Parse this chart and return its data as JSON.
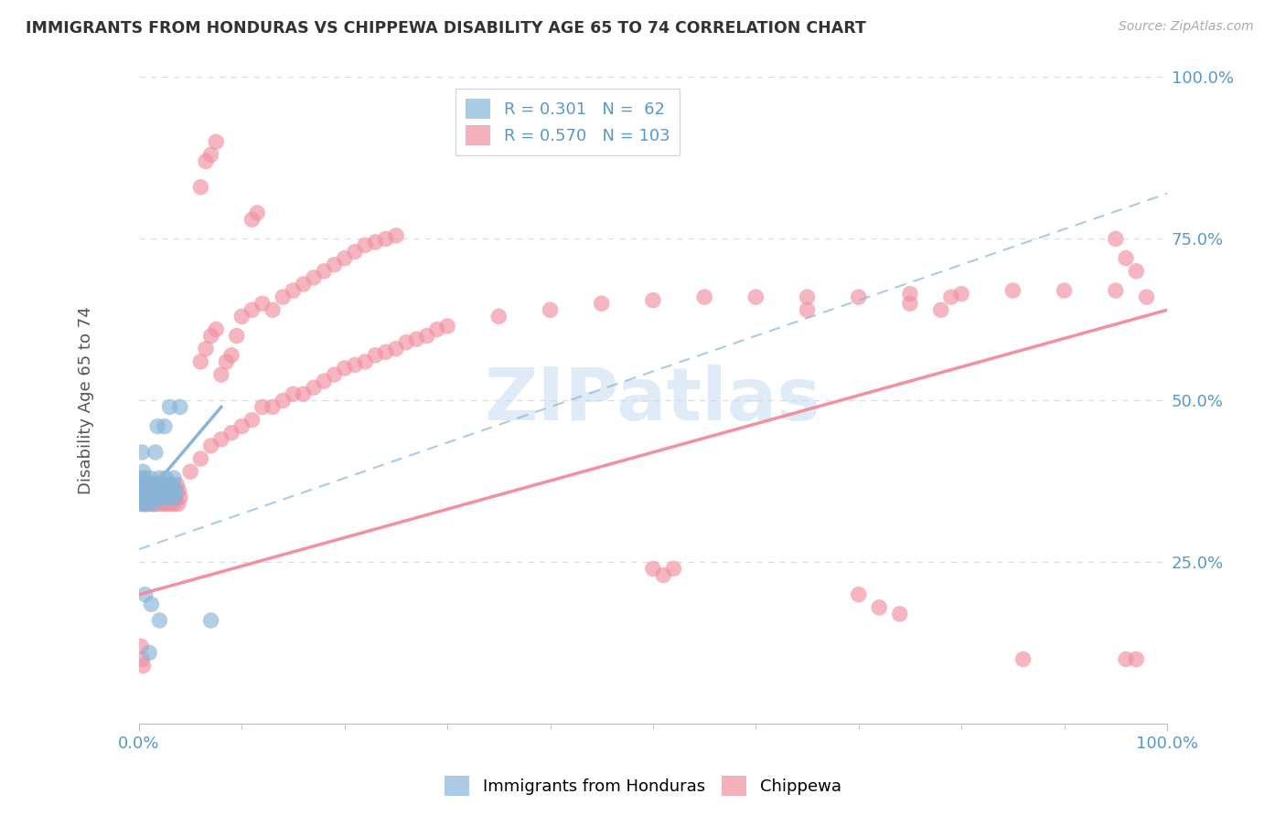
{
  "title": "IMMIGRANTS FROM HONDURAS VS CHIPPEWA DISABILITY AGE 65 TO 74 CORRELATION CHART",
  "source_text": "Source: ZipAtlas.com",
  "ylabel": "Disability Age 65 to 74",
  "xlim": [
    0.0,
    1.0
  ],
  "ylim": [
    0.0,
    1.0
  ],
  "ytick_positions": [
    0.25,
    0.5,
    0.75,
    1.0
  ],
  "ytick_labels": [
    "25.0%",
    "50.0%",
    "75.0%",
    "100.0%"
  ],
  "watermark_text": "ZIPatlas",
  "blue_color": "#88b4d8",
  "pink_color": "#f090a0",
  "blue_scatter": [
    [
      0.002,
      0.37
    ],
    [
      0.003,
      0.42
    ],
    [
      0.004,
      0.39
    ],
    [
      0.005,
      0.35
    ],
    [
      0.006,
      0.38
    ],
    [
      0.007,
      0.34
    ],
    [
      0.008,
      0.36
    ],
    [
      0.009,
      0.37
    ],
    [
      0.01,
      0.35
    ],
    [
      0.011,
      0.38
    ],
    [
      0.012,
      0.36
    ],
    [
      0.013,
      0.37
    ],
    [
      0.014,
      0.34
    ],
    [
      0.015,
      0.36
    ],
    [
      0.016,
      0.42
    ],
    [
      0.017,
      0.37
    ],
    [
      0.018,
      0.35
    ],
    [
      0.019,
      0.36
    ],
    [
      0.02,
      0.38
    ],
    [
      0.021,
      0.35
    ],
    [
      0.022,
      0.36
    ],
    [
      0.023,
      0.37
    ],
    [
      0.024,
      0.35
    ],
    [
      0.025,
      0.36
    ],
    [
      0.026,
      0.38
    ],
    [
      0.027,
      0.36
    ],
    [
      0.028,
      0.35
    ],
    [
      0.029,
      0.37
    ],
    [
      0.03,
      0.36
    ],
    [
      0.031,
      0.35
    ],
    [
      0.032,
      0.37
    ],
    [
      0.033,
      0.36
    ],
    [
      0.034,
      0.38
    ],
    [
      0.035,
      0.35
    ],
    [
      0.036,
      0.36
    ],
    [
      0.001,
      0.37
    ],
    [
      0.001,
      0.35
    ],
    [
      0.002,
      0.36
    ],
    [
      0.003,
      0.38
    ],
    [
      0.004,
      0.34
    ],
    [
      0.005,
      0.36
    ],
    [
      0.006,
      0.37
    ],
    [
      0.007,
      0.35
    ],
    [
      0.008,
      0.36
    ],
    [
      0.009,
      0.37
    ],
    [
      0.01,
      0.35
    ],
    [
      0.011,
      0.36
    ],
    [
      0.012,
      0.37
    ],
    [
      0.013,
      0.35
    ],
    [
      0.014,
      0.36
    ],
    [
      0.015,
      0.37
    ],
    [
      0.016,
      0.35
    ],
    [
      0.017,
      0.36
    ],
    [
      0.018,
      0.37
    ],
    [
      0.04,
      0.49
    ],
    [
      0.018,
      0.46
    ],
    [
      0.025,
      0.46
    ],
    [
      0.03,
      0.49
    ],
    [
      0.006,
      0.2
    ],
    [
      0.012,
      0.185
    ],
    [
      0.02,
      0.16
    ],
    [
      0.07,
      0.16
    ],
    [
      0.01,
      0.11
    ]
  ],
  "pink_scatter": [
    [
      0.002,
      0.34
    ],
    [
      0.003,
      0.36
    ],
    [
      0.004,
      0.35
    ],
    [
      0.005,
      0.37
    ],
    [
      0.006,
      0.34
    ],
    [
      0.007,
      0.36
    ],
    [
      0.008,
      0.35
    ],
    [
      0.009,
      0.37
    ],
    [
      0.01,
      0.34
    ],
    [
      0.011,
      0.36
    ],
    [
      0.012,
      0.35
    ],
    [
      0.013,
      0.37
    ],
    [
      0.014,
      0.34
    ],
    [
      0.015,
      0.36
    ],
    [
      0.016,
      0.35
    ],
    [
      0.017,
      0.37
    ],
    [
      0.018,
      0.34
    ],
    [
      0.019,
      0.36
    ],
    [
      0.02,
      0.35
    ],
    [
      0.021,
      0.37
    ],
    [
      0.022,
      0.34
    ],
    [
      0.023,
      0.36
    ],
    [
      0.024,
      0.35
    ],
    [
      0.025,
      0.37
    ],
    [
      0.026,
      0.34
    ],
    [
      0.027,
      0.36
    ],
    [
      0.028,
      0.35
    ],
    [
      0.029,
      0.37
    ],
    [
      0.03,
      0.34
    ],
    [
      0.031,
      0.36
    ],
    [
      0.032,
      0.35
    ],
    [
      0.033,
      0.37
    ],
    [
      0.034,
      0.34
    ],
    [
      0.035,
      0.36
    ],
    [
      0.036,
      0.35
    ],
    [
      0.037,
      0.37
    ],
    [
      0.038,
      0.34
    ],
    [
      0.039,
      0.36
    ],
    [
      0.04,
      0.35
    ],
    [
      0.001,
      0.35
    ],
    [
      0.002,
      0.36
    ],
    [
      0.003,
      0.37
    ],
    [
      0.004,
      0.35
    ],
    [
      0.005,
      0.36
    ],
    [
      0.006,
      0.37
    ],
    [
      0.007,
      0.35
    ],
    [
      0.008,
      0.36
    ],
    [
      0.05,
      0.39
    ],
    [
      0.06,
      0.41
    ],
    [
      0.07,
      0.43
    ],
    [
      0.08,
      0.44
    ],
    [
      0.09,
      0.45
    ],
    [
      0.1,
      0.46
    ],
    [
      0.11,
      0.47
    ],
    [
      0.12,
      0.49
    ],
    [
      0.13,
      0.49
    ],
    [
      0.14,
      0.5
    ],
    [
      0.15,
      0.51
    ],
    [
      0.16,
      0.51
    ],
    [
      0.17,
      0.52
    ],
    [
      0.18,
      0.53
    ],
    [
      0.19,
      0.54
    ],
    [
      0.2,
      0.55
    ],
    [
      0.21,
      0.555
    ],
    [
      0.22,
      0.56
    ],
    [
      0.23,
      0.57
    ],
    [
      0.24,
      0.575
    ],
    [
      0.25,
      0.58
    ],
    [
      0.26,
      0.59
    ],
    [
      0.27,
      0.595
    ],
    [
      0.28,
      0.6
    ],
    [
      0.29,
      0.61
    ],
    [
      0.3,
      0.615
    ],
    [
      0.35,
      0.63
    ],
    [
      0.4,
      0.64
    ],
    [
      0.45,
      0.65
    ],
    [
      0.5,
      0.655
    ],
    [
      0.55,
      0.66
    ],
    [
      0.6,
      0.66
    ],
    [
      0.65,
      0.66
    ],
    [
      0.7,
      0.66
    ],
    [
      0.75,
      0.665
    ],
    [
      0.8,
      0.665
    ],
    [
      0.85,
      0.67
    ],
    [
      0.9,
      0.67
    ],
    [
      0.95,
      0.67
    ],
    [
      0.98,
      0.66
    ],
    [
      0.06,
      0.56
    ],
    [
      0.065,
      0.58
    ],
    [
      0.07,
      0.6
    ],
    [
      0.075,
      0.61
    ],
    [
      0.08,
      0.54
    ],
    [
      0.085,
      0.56
    ],
    [
      0.09,
      0.57
    ],
    [
      0.095,
      0.6
    ],
    [
      0.1,
      0.63
    ],
    [
      0.11,
      0.64
    ],
    [
      0.12,
      0.65
    ],
    [
      0.13,
      0.64
    ],
    [
      0.14,
      0.66
    ],
    [
      0.15,
      0.67
    ],
    [
      0.16,
      0.68
    ],
    [
      0.17,
      0.69
    ],
    [
      0.18,
      0.7
    ],
    [
      0.19,
      0.71
    ],
    [
      0.2,
      0.72
    ],
    [
      0.21,
      0.73
    ],
    [
      0.22,
      0.74
    ],
    [
      0.23,
      0.745
    ],
    [
      0.24,
      0.75
    ],
    [
      0.25,
      0.755
    ],
    [
      0.002,
      0.12
    ],
    [
      0.003,
      0.1
    ],
    [
      0.004,
      0.09
    ],
    [
      0.7,
      0.2
    ],
    [
      0.72,
      0.18
    ],
    [
      0.74,
      0.17
    ],
    [
      0.86,
      0.1
    ],
    [
      0.96,
      0.1
    ],
    [
      0.97,
      0.1
    ],
    [
      0.5,
      0.24
    ],
    [
      0.51,
      0.23
    ],
    [
      0.52,
      0.24
    ],
    [
      0.06,
      0.83
    ],
    [
      0.065,
      0.87
    ],
    [
      0.07,
      0.88
    ],
    [
      0.075,
      0.9
    ],
    [
      0.11,
      0.78
    ],
    [
      0.115,
      0.79
    ],
    [
      0.95,
      0.75
    ],
    [
      0.96,
      0.72
    ],
    [
      0.97,
      0.7
    ],
    [
      0.75,
      0.65
    ],
    [
      0.78,
      0.64
    ],
    [
      0.79,
      0.66
    ],
    [
      0.65,
      0.64
    ]
  ],
  "blue_line": {
    "x0": 0.0,
    "y0": 0.34,
    "x1": 0.08,
    "y1": 0.49
  },
  "blue_dash_line": {
    "x0": 0.0,
    "y0": 0.27,
    "x1": 1.0,
    "y1": 0.82
  },
  "pink_line": {
    "x0": 0.0,
    "y0": 0.2,
    "x1": 1.0,
    "y1": 0.64
  },
  "grid_color": "#dddddd",
  "background_color": "#ffffff",
  "title_color": "#333333",
  "axis_label_color": "#555555",
  "tick_color": "#5599cc"
}
